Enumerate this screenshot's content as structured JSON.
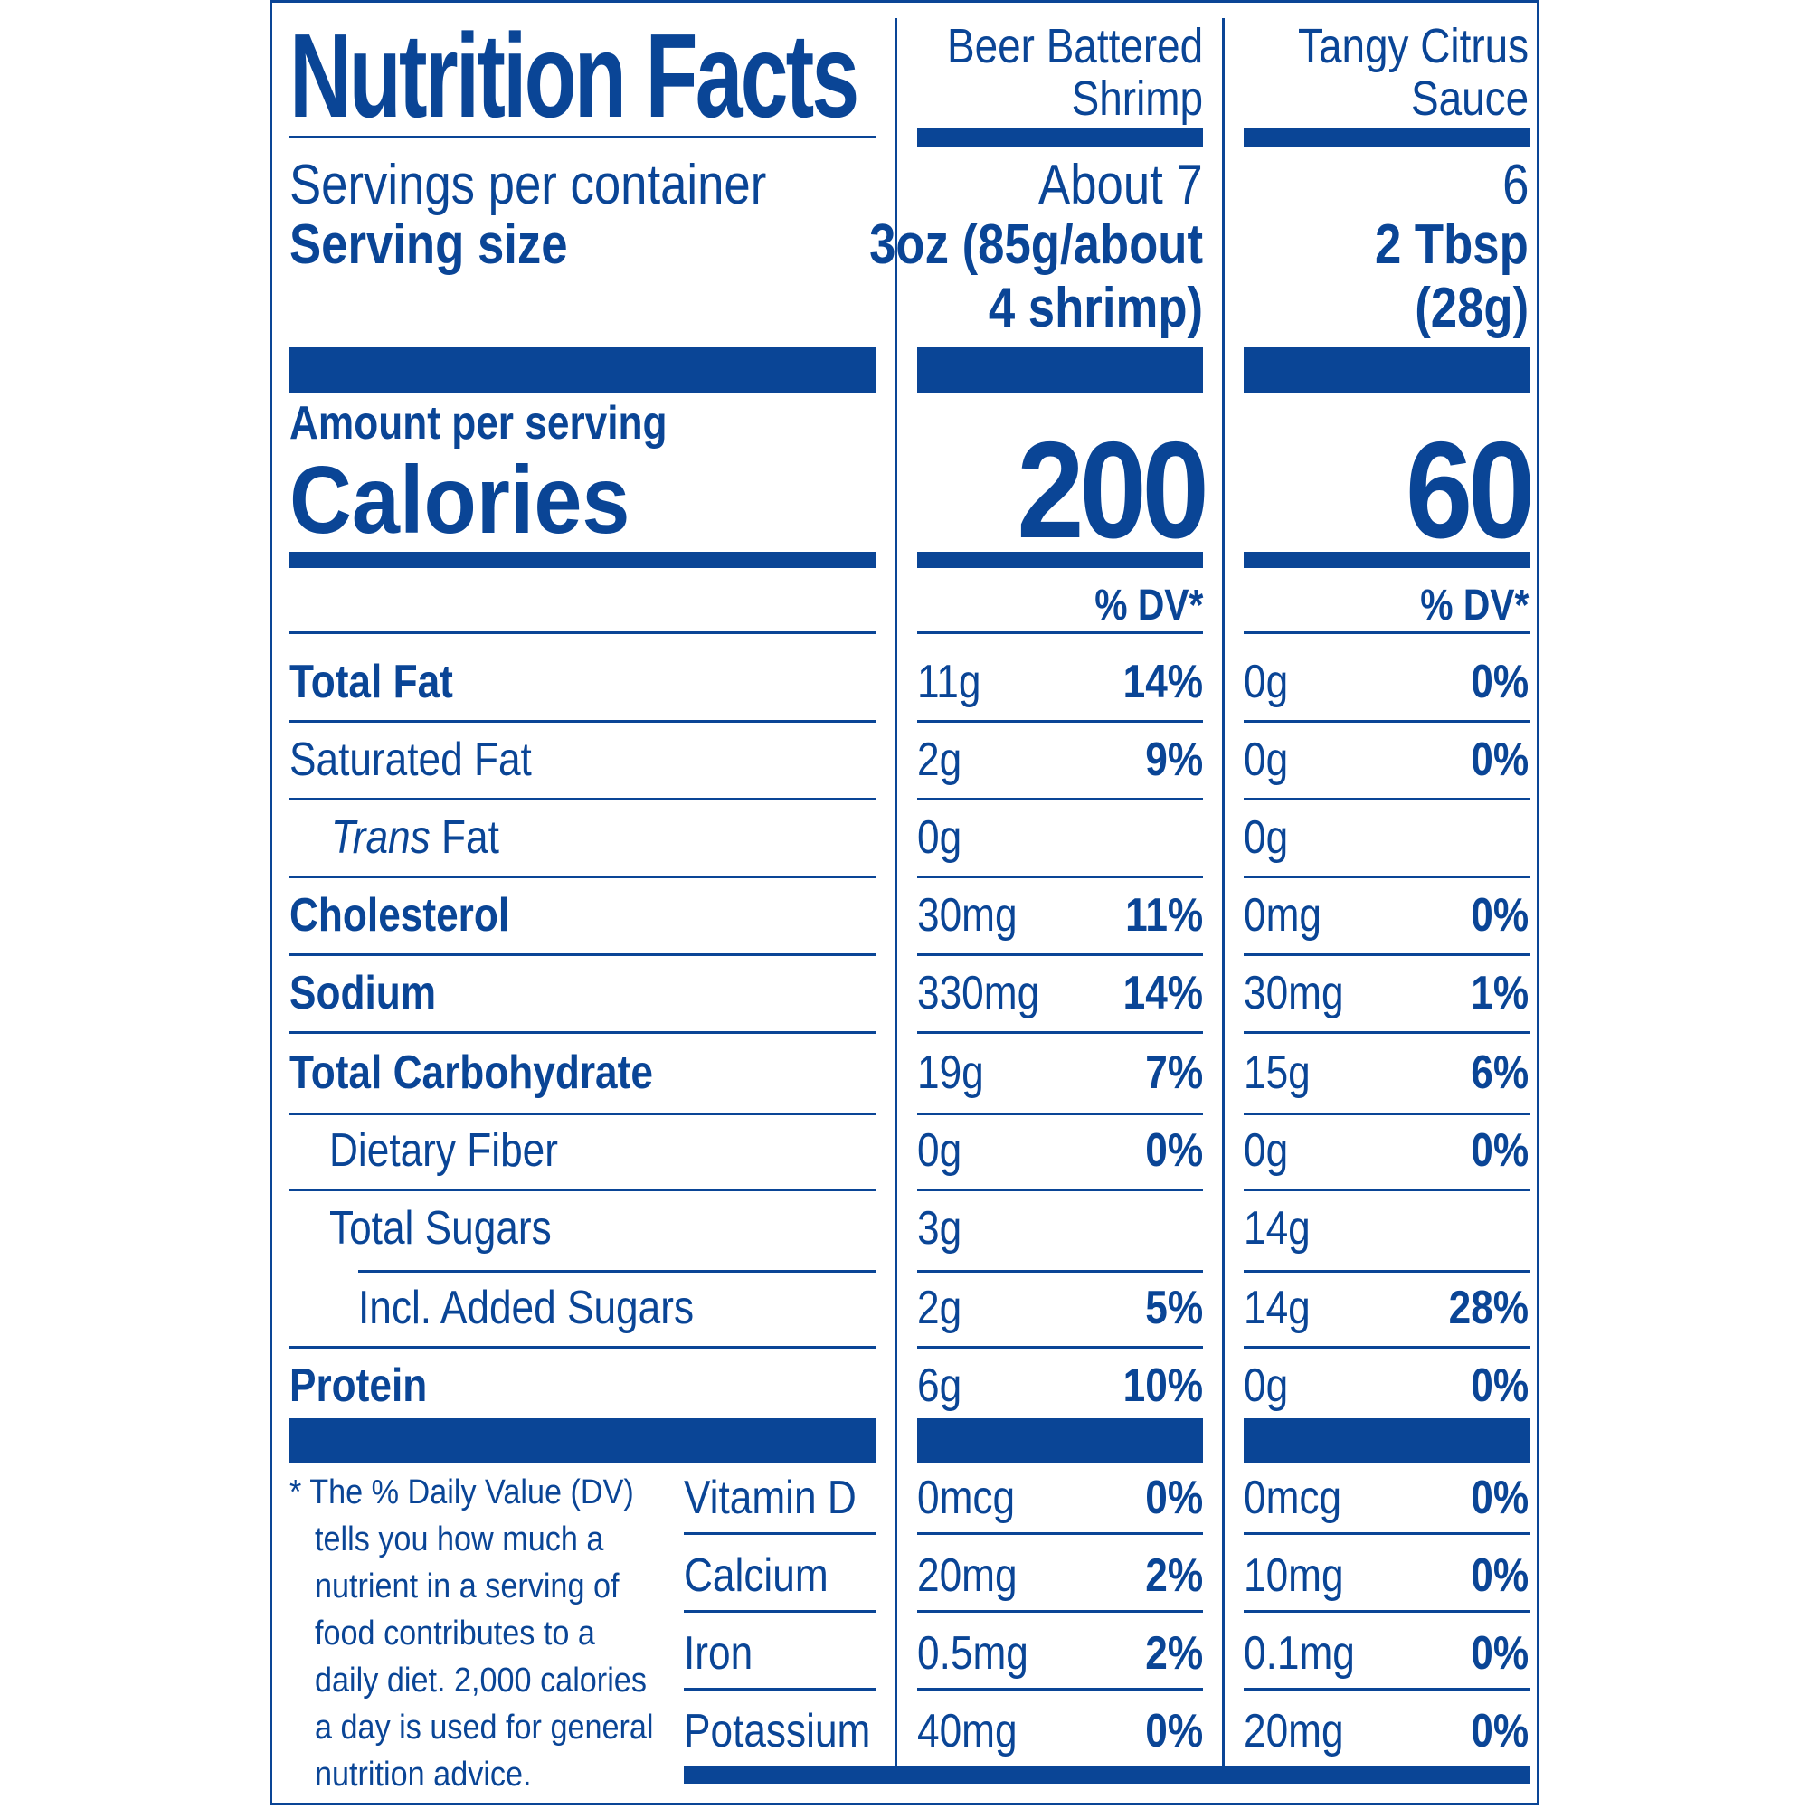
{
  "title": "Nutrition Facts",
  "products": [
    {
      "name_line1": "Beer Battered",
      "name_line2": "Shrimp",
      "servings": "About 7",
      "serving_size_line1": "3oz (85g/about",
      "serving_size_line2": "4 shrimp)",
      "calories": "200"
    },
    {
      "name_line1": "Tangy Citrus",
      "name_line2": "Sauce",
      "servings": "6",
      "serving_size_line1": "2 Tbsp",
      "serving_size_line2": "(28g)",
      "calories": "60"
    }
  ],
  "servings_label": "Servings per container",
  "serving_size_label": "Serving size",
  "amount_label": "Amount per serving",
  "calories_label": "Calories",
  "dv_header": "% DV*",
  "nutrients": [
    {
      "label": "Total Fat",
      "p1_amount": "11g",
      "p1_dv": "14%",
      "p2_amount": "0g",
      "p2_dv": "0%"
    },
    {
      "label": "Saturated Fat",
      "p1_amount": "2g",
      "p1_dv": "9%",
      "p2_amount": "0g",
      "p2_dv": "0%"
    },
    {
      "label_italic": "Trans",
      "label_rest": " Fat",
      "p1_amount": "0g",
      "p1_dv": "",
      "p2_amount": "0g",
      "p2_dv": ""
    },
    {
      "label": "Cholesterol",
      "p1_amount": "30mg",
      "p1_dv": "11%",
      "p2_amount": "0mg",
      "p2_dv": "0%"
    },
    {
      "label": "Sodium",
      "p1_amount": "330mg",
      "p1_dv": "14%",
      "p2_amount": "30mg",
      "p2_dv": "1%"
    },
    {
      "label": "Total Carbohydrate",
      "p1_amount": "19g",
      "p1_dv": "7%",
      "p2_amount": "15g",
      "p2_dv": "6%"
    },
    {
      "label": "Dietary Fiber",
      "p1_amount": "0g",
      "p1_dv": "0%",
      "p2_amount": "0g",
      "p2_dv": "0%"
    },
    {
      "label": "Total Sugars",
      "p1_amount": "3g",
      "p1_dv": "",
      "p2_amount": "14g",
      "p2_dv": ""
    },
    {
      "label": "Incl. Added Sugars",
      "p1_amount": "2g",
      "p1_dv": "5%",
      "p2_amount": "14g",
      "p2_dv": "28%"
    },
    {
      "label": "Protein",
      "p1_amount": "6g",
      "p1_dv": "10%",
      "p2_amount": "0g",
      "p2_dv": "0%"
    }
  ],
  "vitamins": [
    {
      "label": "Vitamin D",
      "p1_amount": "0mcg",
      "p1_dv": "0%",
      "p2_amount": "0mcg",
      "p2_dv": "0%"
    },
    {
      "label": "Calcium",
      "p1_amount": "20mg",
      "p1_dv": "2%",
      "p2_amount": "10mg",
      "p2_dv": "0%"
    },
    {
      "label": "Iron",
      "p1_amount": "0.5mg",
      "p1_dv": "2%",
      "p2_amount": "0.1mg",
      "p2_dv": "0%"
    },
    {
      "label": "Potassium",
      "p1_amount": "40mg",
      "p1_dv": "0%",
      "p2_amount": "20mg",
      "p2_dv": "0%"
    }
  ],
  "footnote": [
    "* The % Daily Value (DV)",
    "tells you how much a",
    "nutrient in a serving of",
    "food contributes to a",
    "daily diet. 2,000 calories",
    "a day is used for general",
    "nutrition advice."
  ],
  "colors": {
    "label_blue": "#0a4596",
    "background": "#ffffff"
  }
}
